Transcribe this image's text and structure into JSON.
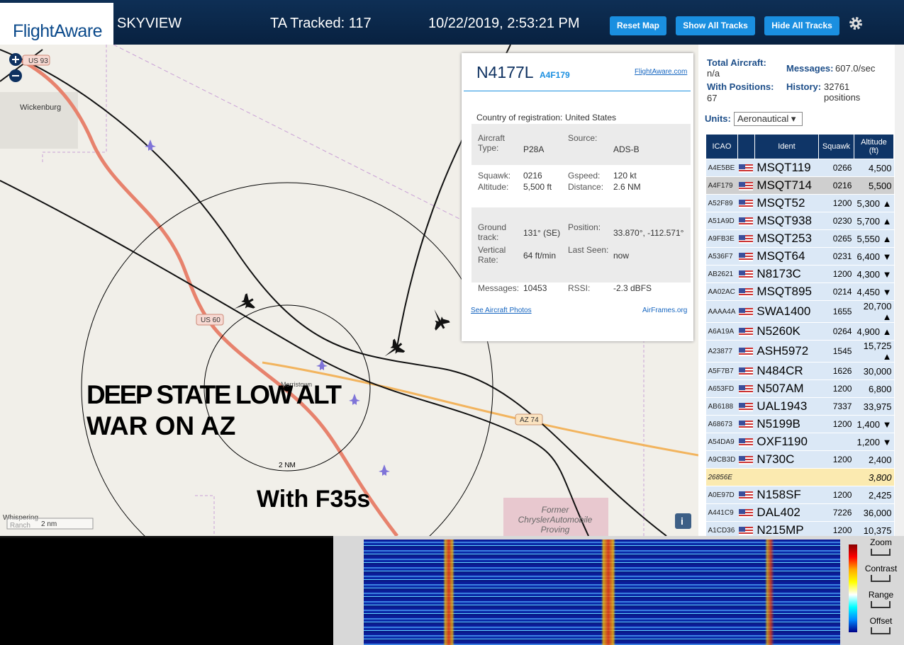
{
  "header": {
    "logo": "FlightAware",
    "app": "SKYVIEW",
    "tracked": "TA Tracked: 117",
    "datetime": "10/22/2019, 2:53:21 PM",
    "buttons": [
      "Reset Map",
      "Show All Tracks",
      "Hide All Tracks"
    ]
  },
  "map": {
    "labels": {
      "us93": "US 93",
      "wickenburg": "Wickenburg",
      "us60": "US 60",
      "morristown": "Morristown",
      "az74": "AZ 74",
      "range": "2 NM",
      "whispering": "Whispering",
      "ranch": "Ranch",
      "scale": "2 nm",
      "former": "Former",
      "chrysler": "ChryslerAutomobile",
      "proving": "Proving"
    },
    "overlay": {
      "line1": "DEEP STATE LOW ALT",
      "line2": "WAR ON AZ",
      "line3": "With F35s"
    }
  },
  "popup": {
    "ident": "N4177L",
    "hex": "A4F179",
    "link": "FlightAware.com",
    "country_label": "Country of registration:",
    "country": "United States",
    "rows": [
      [
        [
          "Aircraft Type:",
          "P28A"
        ],
        [
          "Source:",
          "ADS-B"
        ]
      ],
      [
        [
          "Squawk:",
          "0216"
        ],
        [
          "Gspeed:",
          "120 kt"
        ]
      ],
      [
        [
          "Altitude:",
          "5,500 ft"
        ],
        [
          "Distance:",
          "2.6 NM"
        ]
      ],
      [
        [
          "Ground track:",
          "131° (SE)"
        ],
        [
          "Position:",
          "33.870°, -112.571°"
        ]
      ],
      [
        [
          "Vertical Rate:",
          "64 ft/min"
        ],
        [
          "Last Seen:",
          "now"
        ]
      ],
      [
        [
          "Messages:",
          "10453"
        ],
        [
          "RSSI:",
          "-2.3 dBFS"
        ]
      ]
    ],
    "photos": "See Aircraft Photos",
    "airframes": "AirFrames.org"
  },
  "stats": {
    "total_label": "Total Aircraft:",
    "total": "n/a",
    "messages_label": "Messages:",
    "messages": "607.0/sec",
    "positions_label": "With Positions:",
    "positions": "67",
    "history_label": "History:",
    "history": "32761 positions",
    "units_label": "Units:",
    "units": "Aeronautical"
  },
  "table": {
    "headers": [
      "ICAO",
      "Ident",
      "Squawk",
      "Altitude (ft)"
    ],
    "rows": [
      {
        "icao": "A4E5BE",
        "ident": "MSQT119",
        "squawk": "0266",
        "alt": "4,500"
      },
      {
        "icao": "A4F179",
        "ident": "MSQT714",
        "squawk": "0216",
        "alt": "5,500"
      },
      {
        "icao": "A52F89",
        "ident": "MSQT52",
        "squawk": "1200",
        "alt": "5,300 ▲"
      },
      {
        "icao": "A51A9D",
        "ident": "MSQT938",
        "squawk": "0230",
        "alt": "5,700 ▲"
      },
      {
        "icao": "A9FB3E",
        "ident": "MSQT253",
        "squawk": "0265",
        "alt": "5,550 ▲"
      },
      {
        "icao": "A536F7",
        "ident": "MSQT64",
        "squawk": "0231",
        "alt": "6,400 ▼"
      },
      {
        "icao": "AB2621",
        "ident": "N8173C",
        "squawk": "1200",
        "alt": "4,300 ▼"
      },
      {
        "icao": "AA02AC",
        "ident": "MSQT895",
        "squawk": "0214",
        "alt": "4,450 ▼"
      },
      {
        "icao": "AAAA4A",
        "ident": "SWA1400",
        "squawk": "1655",
        "alt": "20,700 ▲"
      },
      {
        "icao": "A6A19A",
        "ident": "N5260K",
        "squawk": "0264",
        "alt": "4,900 ▲"
      },
      {
        "icao": "A23877",
        "ident": "ASH5972",
        "squawk": "1545",
        "alt": "15,725 ▲"
      },
      {
        "icao": "A5F7B7",
        "ident": "N484CR",
        "squawk": "1626",
        "alt": "30,000"
      },
      {
        "icao": "A653FD",
        "ident": "N507AM",
        "squawk": "1200",
        "alt": "6,800"
      },
      {
        "icao": "AB6188",
        "ident": "UAL1943",
        "squawk": "7337",
        "alt": "33,975"
      },
      {
        "icao": "A68673",
        "ident": "N5199B",
        "squawk": "1200",
        "alt": "1,400 ▼"
      },
      {
        "icao": "A54DA9",
        "ident": "OXF1190",
        "alt": "1,200 ▼"
      },
      {
        "icao": "A9CB3D",
        "ident": "N730C",
        "squawk": "1200",
        "alt": "2,400"
      },
      {
        "icao": "26856E",
        "alt": "3,800"
      },
      {
        "icao": "A0E97D",
        "ident": "N158SF",
        "squawk": "1200",
        "alt": "2,425"
      },
      {
        "icao": "A441C9",
        "ident": "DAL402",
        "squawk": "7226",
        "alt": "36,000"
      },
      {
        "icao": "A1CD36",
        "ident": "N215MP",
        "squawk": "1200",
        "alt": "10,375"
      }
    ]
  },
  "spectrum": {
    "controls": [
      "Zoom",
      "Contrast",
      "Range",
      "Offset"
    ]
  }
}
